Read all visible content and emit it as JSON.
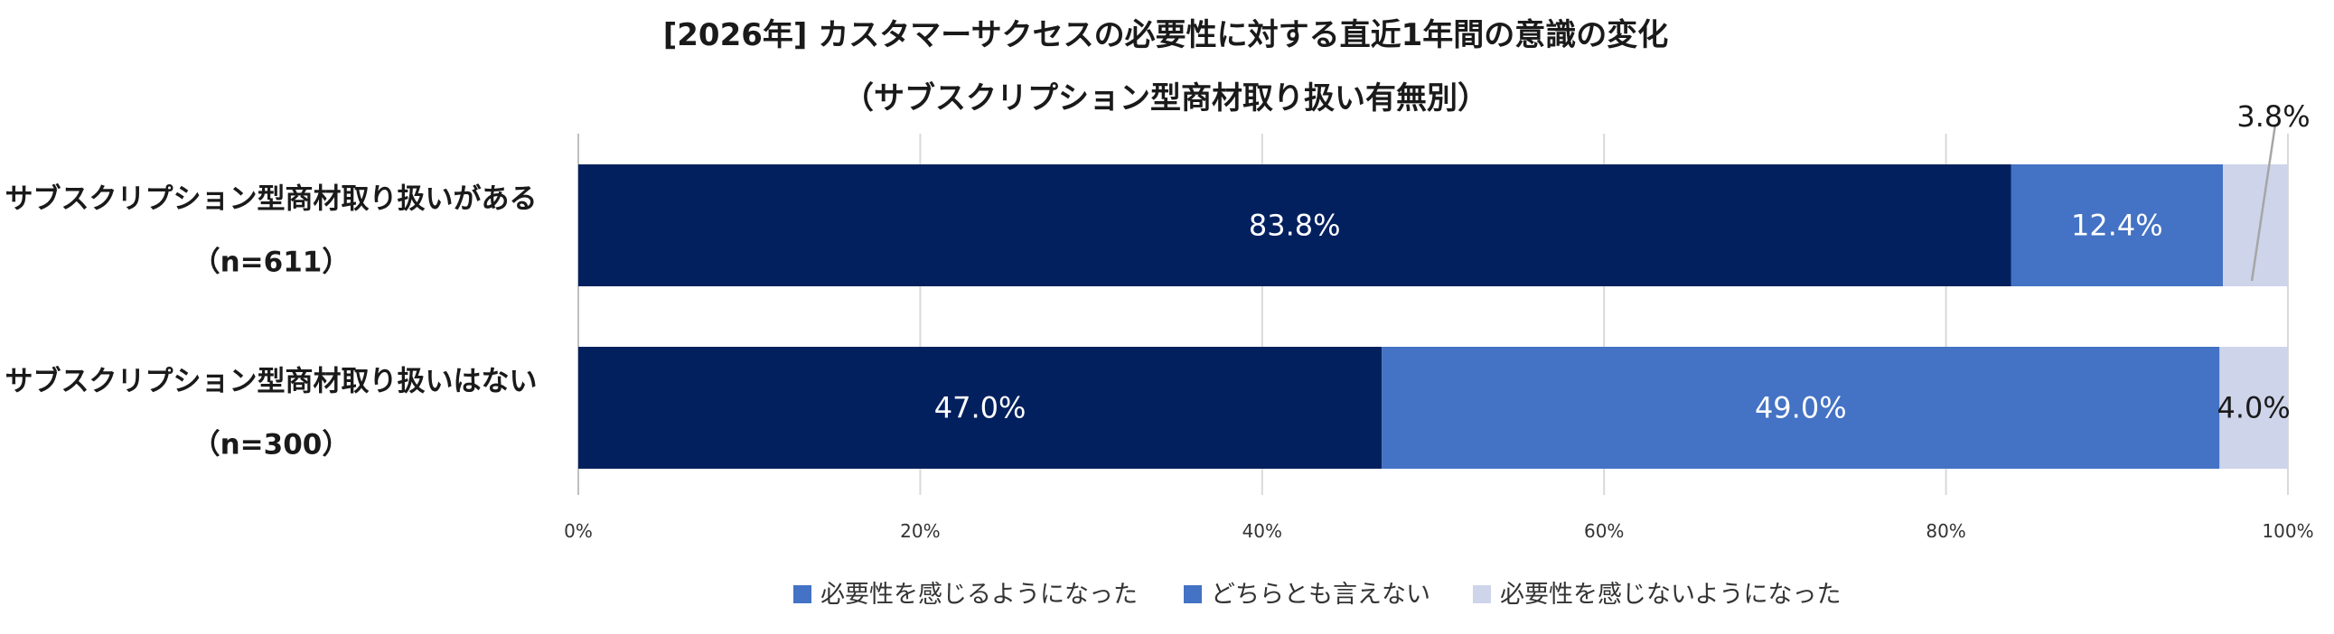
{
  "chart_data": {
    "type": "bar",
    "orientation": "horizontal",
    "stacked": true,
    "title": "[2026年] カスタマーサクセスの必要性に対する直近1年間の意識の変化",
    "subtitle": "（サブスクリプション型商材取り扱い有無別）",
    "categories": [
      {
        "label": "サブスクリプション型商材取り扱いがある",
        "n_label": "（n=611）"
      },
      {
        "label": "サブスクリプション型商材取り扱いはない",
        "n_label": "（n=300）"
      }
    ],
    "series": [
      {
        "name": "必要性を感じるようになった",
        "color": "#03205e",
        "legend_color": "#4472c4",
        "values": [
          83.8,
          47.0
        ],
        "value_labels": [
          "83.8%",
          "47.0%"
        ]
      },
      {
        "name": "どちらとも言えない",
        "color": "#4472c4",
        "legend_color": "#4472c4",
        "values": [
          12.4,
          49.0
        ],
        "value_labels": [
          "12.4%",
          "49.0%"
        ]
      },
      {
        "name": "必要性を感じないようになった",
        "color": "#ced4ea",
        "legend_color": "#ced4ea",
        "values": [
          3.8,
          4.0
        ],
        "value_labels": [
          "3.8%",
          "4.0%"
        ]
      }
    ],
    "xlim": [
      0,
      100
    ],
    "ticks": [
      "0%",
      "20%",
      "40%",
      "60%",
      "80%",
      "100%"
    ],
    "grid": true,
    "legend_position": "bottom"
  }
}
